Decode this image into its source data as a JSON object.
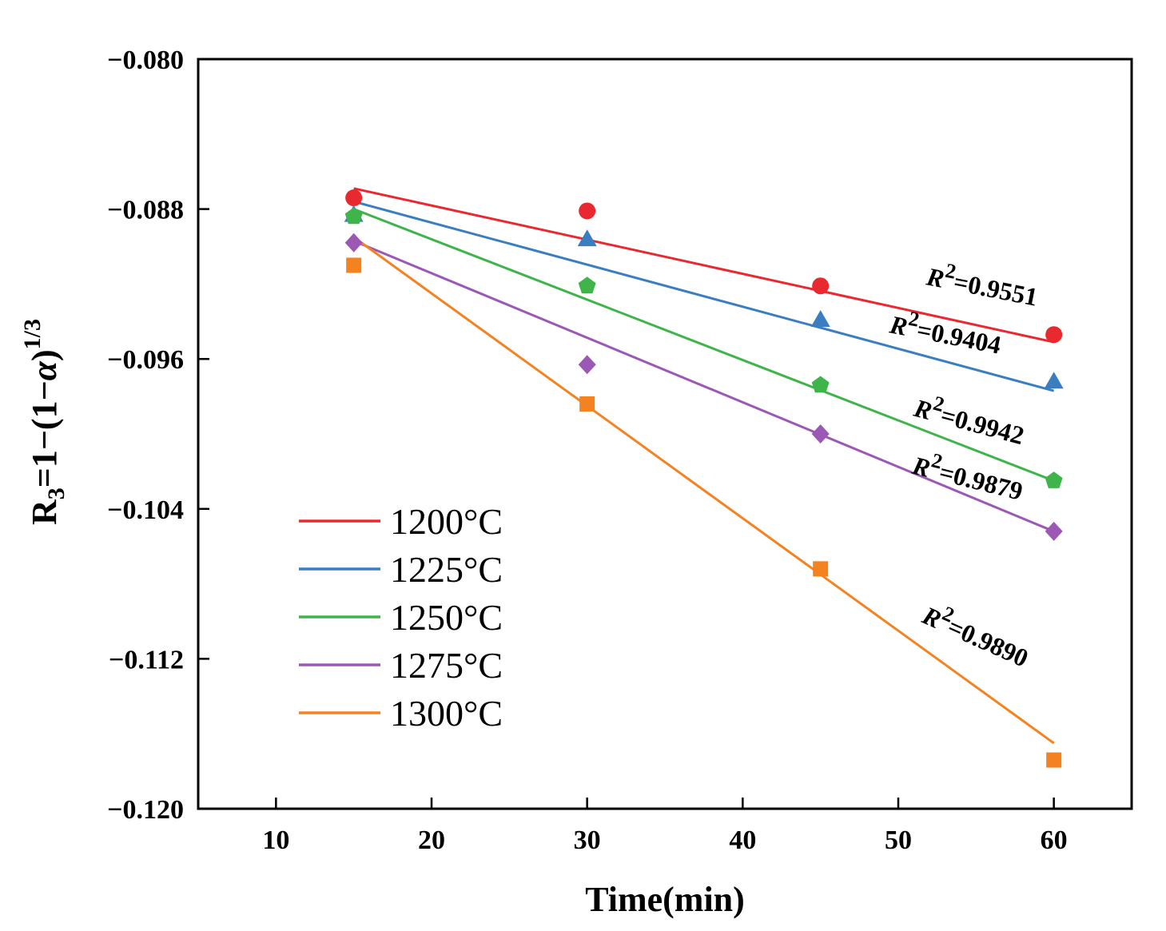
{
  "chart_data": {
    "type": "scatter",
    "xlabel": "Time(min)",
    "ylabel": "R3=1−(1−α)^1/3",
    "ylabel_parts": {
      "main": "R",
      "sub": "3",
      "mid": "=1−(1−",
      "alpha": "α",
      "close": ")",
      "sup": "1/3"
    },
    "xlim": [
      5,
      65
    ],
    "ylim": [
      -0.12,
      -0.08
    ],
    "x_ticks": [
      10,
      20,
      30,
      40,
      50,
      60
    ],
    "x_tick_labels": [
      "10",
      "20",
      "30",
      "40",
      "50",
      "60"
    ],
    "y_ticks": [
      -0.08,
      -0.088,
      -0.096,
      -0.104,
      -0.112,
      -0.12
    ],
    "y_tick_labels": [
      "−0.080",
      "−0.088",
      "−0.096",
      "−0.104",
      "−0.112",
      "−0.120"
    ],
    "grid": false,
    "legend_position": "lower-left",
    "x": [
      15,
      30,
      45,
      60
    ],
    "series": [
      {
        "name": "1200°C",
        "color": "#e8292f",
        "marker": "circle",
        "values": [
          -0.0874,
          -0.0881,
          -0.0921,
          -0.0947
        ],
        "fit": [
          -0.0869,
          -0.0951
        ],
        "r2": "R2=0.9551",
        "r2_parts": {
          "r": "R",
          "sup": "2",
          "val": "=0.9551"
        }
      },
      {
        "name": "1225°C",
        "color": "#3a7ec1",
        "marker": "triangle",
        "values": [
          -0.0883,
          -0.0896,
          -0.0939,
          -0.0972
        ],
        "fit": [
          -0.0876,
          -0.0977
        ],
        "r2": "R2=0.9404",
        "r2_parts": {
          "r": "R",
          "sup": "2",
          "val": "=0.9404"
        }
      },
      {
        "name": "1250°C",
        "color": "#3fb44a",
        "marker": "pentagon",
        "values": [
          -0.0884,
          -0.0921,
          -0.0974,
          -0.1025
        ],
        "fit": [
          -0.088,
          -0.1025
        ],
        "r2": "R2=0.9942",
        "r2_parts": {
          "r": "R",
          "sup": "2",
          "val": "=0.9942"
        }
      },
      {
        "name": "1275°C",
        "color": "#9b58b5",
        "marker": "diamond",
        "values": [
          -0.0898,
          -0.0963,
          -0.1,
          -0.1052
        ],
        "fit": [
          -0.0897,
          -0.1052
        ],
        "r2": "R2=0.9879",
        "r2_parts": {
          "r": "R",
          "sup": "2",
          "val": "=0.9879"
        }
      },
      {
        "name": "1300°C",
        "color": "#f58220",
        "marker": "square",
        "values": [
          -0.091,
          -0.0984,
          -0.1072,
          -0.1174
        ],
        "fit": [
          -0.0895,
          -0.1165
        ],
        "r2": "R2=0.9890",
        "r2_parts": {
          "r": "R",
          "sup": "2",
          "val": "=0.9890"
        }
      }
    ]
  }
}
